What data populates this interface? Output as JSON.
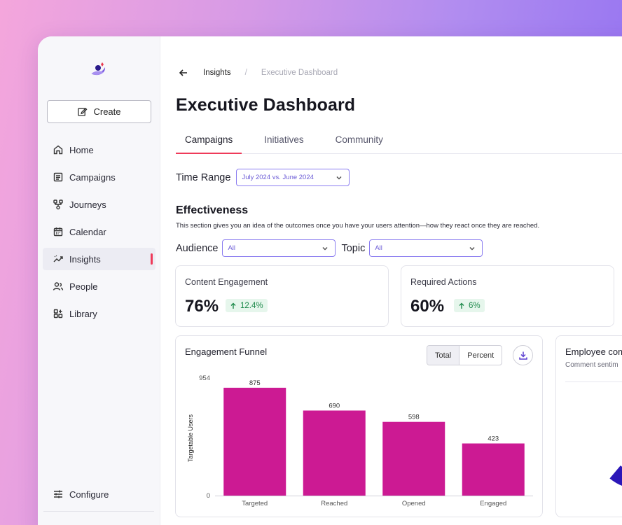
{
  "sidebar": {
    "create_label": "Create",
    "items": [
      {
        "name": "home",
        "label": "Home",
        "icon": "home-icon"
      },
      {
        "name": "campaigns",
        "label": "Campaigns",
        "icon": "list-icon"
      },
      {
        "name": "journeys",
        "label": "Journeys",
        "icon": "flow-icon"
      },
      {
        "name": "calendar",
        "label": "Calendar",
        "icon": "calendar-icon"
      },
      {
        "name": "insights",
        "label": "Insights",
        "icon": "trend-icon",
        "active": true
      },
      {
        "name": "people",
        "label": "People",
        "icon": "people-icon"
      },
      {
        "name": "library",
        "label": "Library",
        "icon": "library-icon"
      }
    ],
    "configure_label": "Configure"
  },
  "breadcrumb": {
    "parent": "Insights",
    "separator": "/",
    "current": "Executive Dashboard"
  },
  "page_title": "Executive Dashboard",
  "tabs": [
    {
      "label": "Campaigns",
      "active": true
    },
    {
      "label": "Initiatives",
      "active": false
    },
    {
      "label": "Community",
      "active": false
    }
  ],
  "time_range": {
    "label": "Time Range",
    "value": "July 2024 vs. June 2024"
  },
  "effectiveness": {
    "title": "Effectiveness",
    "description": "This section gives you an idea of the outcomes once you have your users attention—how they react once they are reached."
  },
  "filters": {
    "audience_label": "Audience",
    "audience_value": "All",
    "topic_label": "Topic",
    "topic_value": "All"
  },
  "kpis": [
    {
      "label": "Content Engagement",
      "value": "76%",
      "delta": "12.4%"
    },
    {
      "label": "Required Actions",
      "value": "60%",
      "delta": "6%"
    }
  ],
  "funnel": {
    "title": "Engagement Funnel",
    "toggle_total": "Total",
    "toggle_percent": "Percent"
  },
  "employee_card": {
    "title": "Employee com",
    "subtitle": "Comment sentim"
  },
  "colors": {
    "accent": "#ef3b5a",
    "bar": "#cc1a93",
    "select_border": "#8a7cf0",
    "positive": "#1e8a4b"
  },
  "chart_data": {
    "type": "bar",
    "categories": [
      "Targeted",
      "Reached",
      "Opened",
      "Engaged"
    ],
    "values": [
      875,
      690,
      598,
      423
    ],
    "ylabel": "Targetable Users",
    "ylim": [
      0,
      954
    ],
    "yticks": [
      0,
      954
    ],
    "grid": false,
    "color": "#cc1a93"
  },
  "donut_data": {
    "type": "pie",
    "colors": [
      "#2b17b8",
      "#8a6cf0",
      "#1a1060"
    ]
  }
}
